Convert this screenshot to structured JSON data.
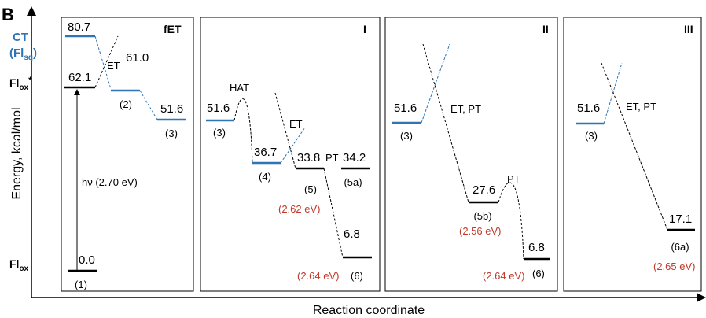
{
  "figure_letter": "B",
  "axes": {
    "ylabel": "Energy, kcal/mol",
    "xlabel": "Reaction coordinate"
  },
  "side_labels": {
    "ct": "CT",
    "fl_sq": "(Fl",
    "fl_sq_sub": "sq",
    "fl_sq_close": ")",
    "fl_ox_star": "Fl",
    "fl_ox_star_sub": "ox",
    "fl_ox_star_sup": "*",
    "fl_ox": "Fl",
    "fl_ox_sub": "ox"
  },
  "panels": {
    "fet": {
      "title": "fET",
      "ct_value": "80.7",
      "et_label": "ET",
      "et_value": "61.0",
      "flox_star_value": "62.1",
      "l2_label": "(2)",
      "l3_value": "51.6",
      "l3_label": "(3)",
      "hv_label": "hν (2.70 eV)",
      "flox_value": "0.0",
      "flox_label": "(1)"
    },
    "p1": {
      "title": "I",
      "l3_value": "51.6",
      "l3_label": "(3)",
      "hat_label": "HAT",
      "l4_value": "36.7",
      "l4_label": "(4)",
      "et_label": "ET",
      "l5_value": "33.8",
      "l5_label": "(5)",
      "l5_ev": "(2.62 eV)",
      "pt_label": "PT",
      "l5a_value": "34.2",
      "l5a_label": "(5a)",
      "l6_value": "6.8",
      "l6_ev": "(2.64 eV)",
      "l6_label": "(6)"
    },
    "p2": {
      "title": "II",
      "l3_value": "51.6",
      "l3_label": "(3)",
      "etpt_label": "ET, PT",
      "l5b_value": "27.6",
      "l5b_label": "(5b)",
      "l5b_ev": "(2.56 eV)",
      "pt_label": "PT",
      "l6_value": "6.8",
      "l6_ev": "(2.64 eV)",
      "l6_label": "(6)"
    },
    "p3": {
      "title": "III",
      "l3_value": "51.6",
      "l3_label": "(3)",
      "etpt_label": "ET, PT",
      "l6a_value": "17.1",
      "l6a_label": "(6a)",
      "l6a_ev": "(2.65 eV)"
    }
  },
  "colors": {
    "level_black": "#000000",
    "level_blue": "#2e75b6",
    "ev_red": "#c0392b"
  }
}
